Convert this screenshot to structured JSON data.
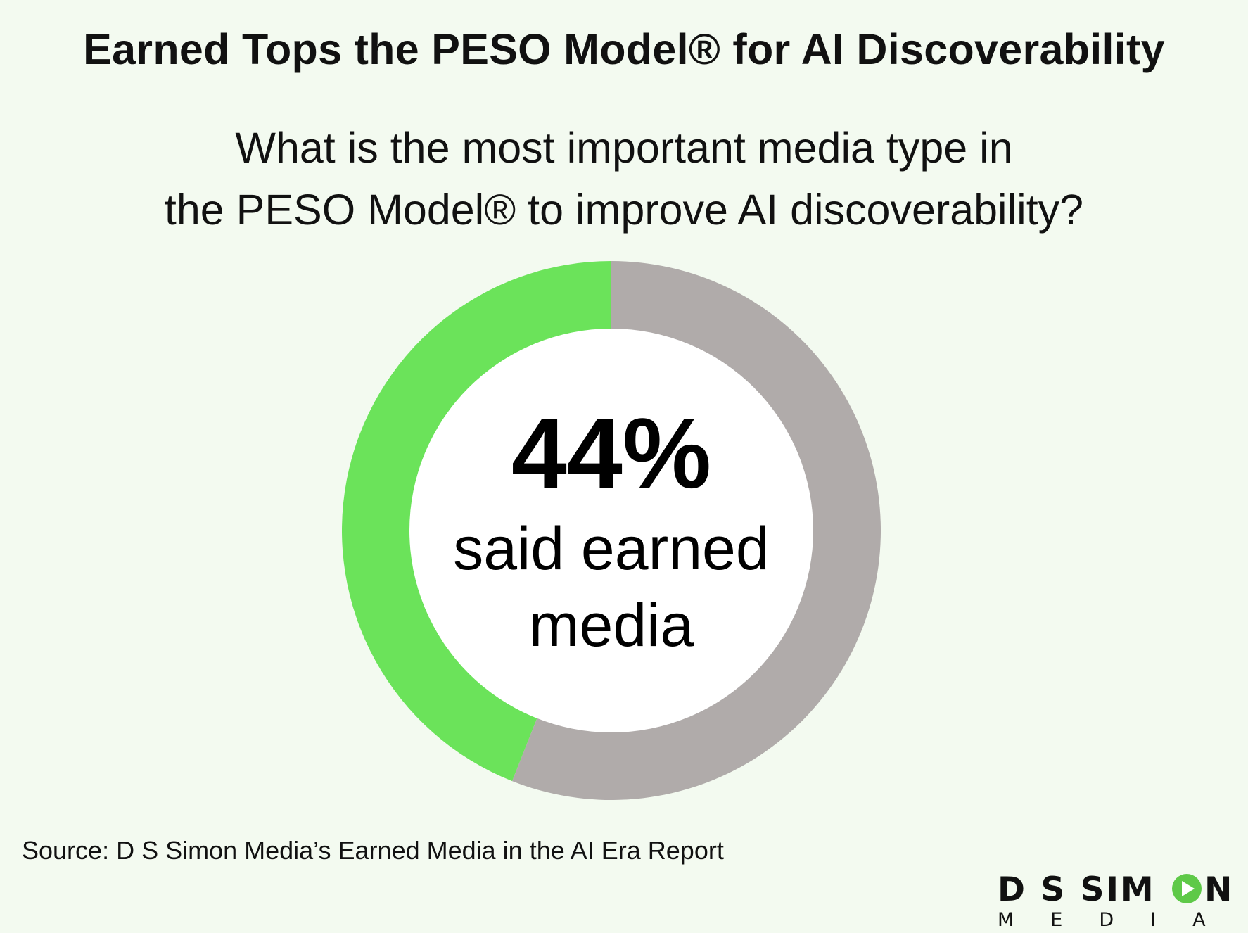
{
  "title": "Earned Tops the PESO Model® for AI Discoverability",
  "subtitle_lines": [
    "What is the most important media type in",
    "the PESO Model® to improve AI discoverability?"
  ],
  "chart_data": {
    "type": "pie",
    "donut": true,
    "slices": [
      {
        "label": "said earned media",
        "value": 44,
        "color": "#6be35a"
      },
      {
        "value": 56,
        "color": "#b0abaa"
      }
    ],
    "center_value": "44%",
    "center_label_lines": [
      "said earned",
      "media"
    ]
  },
  "source": "Source: D S Simon Media’s Earned Media in the AI Era Report",
  "logo": {
    "line1_part1": "D S SIM",
    "line1_part2": "N",
    "line2": "MEDIA",
    "play_color": "#5ec948"
  }
}
